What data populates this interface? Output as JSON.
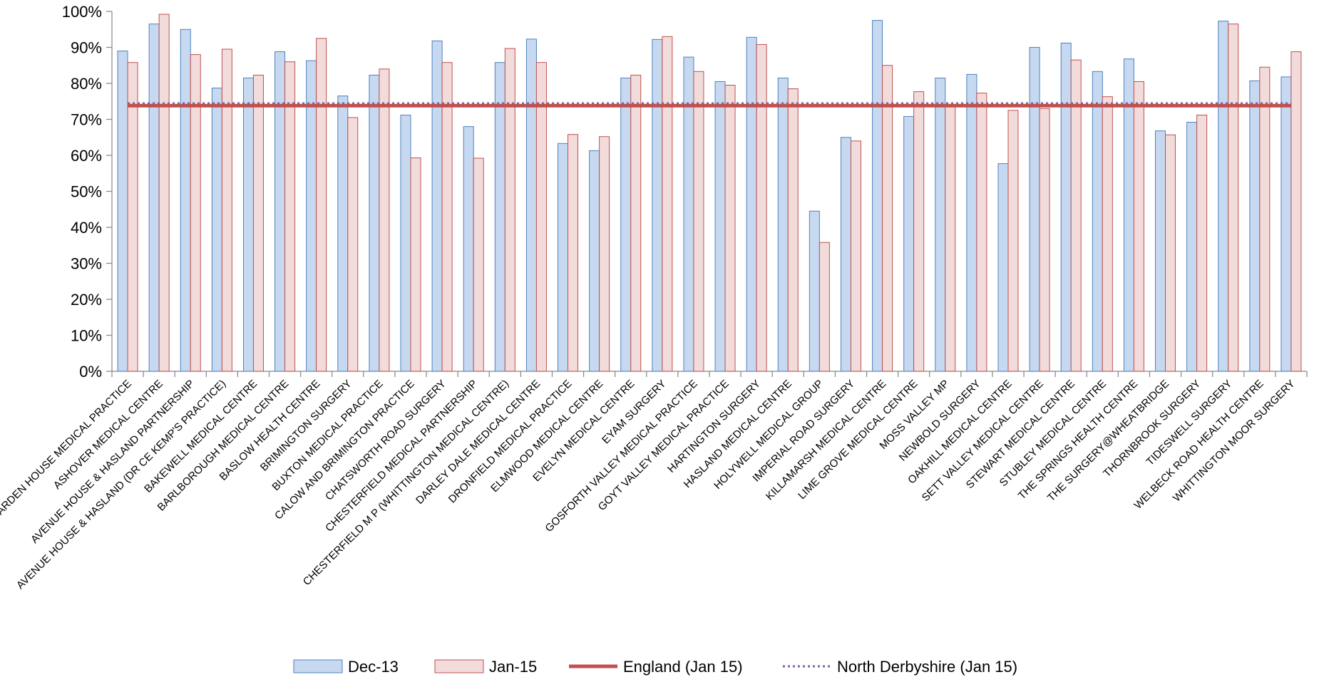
{
  "chart_data": {
    "type": "bar",
    "title": "",
    "xlabel": "",
    "ylabel": "",
    "ylim": [
      0,
      1
    ],
    "y_ticks": [
      "0%",
      "10%",
      "20%",
      "30%",
      "40%",
      "50%",
      "60%",
      "70%",
      "80%",
      "90%",
      "100%"
    ],
    "grid": false,
    "legend_position": "bottom",
    "categories": [
      "ARDEN HOUSE MEDICAL PRACTICE",
      "ASHOVER MEDICAL CENTRE",
      "AVENUE HOUSE & HASLAND PARTNERSHIP",
      "AVENUE HOUSE & HASLAND (DR CE KEMP'S PRACTICE)",
      "BAKEWELL MEDICAL CENTRE",
      "BARLBOROUGH MEDICAL CENTRE",
      "BASLOW HEALTH CENTRE",
      "BRIMINGTON SURGERY",
      "BUXTON MEDICAL PRACTICE",
      "CALOW AND BRIMINGTON PRACTICE",
      "CHATSWORTH ROAD SURGERY",
      "CHESTERFIELD MEDICAL PARTNERSHIP",
      "CHESTERFIELD M P (WHITTINGTON MEDICAL CENTRE)",
      "DARLEY DALE MEDICAL CENTRE",
      "DRONFIELD MEDICAL PRACTICE",
      "ELMWOOD MEDICAL CENTRE",
      "EVELYN MEDICAL CENTRE",
      "EYAM SURGERY",
      "GOSFORTH VALLEY MEDICAL PRACTICE",
      "GOYT VALLEY MEDICAL PRACTICE",
      "HARTINGTON SURGERY",
      "HASLAND MEDICAL CENTRE",
      "HOLYWELL MEDICAL GROUP",
      "IMPERIAL ROAD SURGERY",
      "KILLAMARSH MEDICAL CENTRE",
      "LIME GROVE MEDICAL CENTRE",
      "MOSS VALLEY MP",
      "NEWBOLD SURGERY",
      "OAKHILL MEDICAL CENTRE",
      "SETT VALLEY MEDICAL CENTRE",
      "STEWART MEDICAL CENTRE",
      "STUBLEY MEDICAL CENTRE",
      "THE SPRINGS HEALTH CENTRE",
      "THE SURGERY@WHEATBRIDGE",
      "THORNBROOK SURGERY",
      "TIDESWELL SURGERY",
      "WELBECK ROAD HEALTH CENTRE",
      "WHITTINGTON MOOR SURGERY"
    ],
    "series": [
      {
        "name": "Dec-13",
        "type": "bar",
        "fill": "#c6d9f1",
        "stroke": "#4f81bd",
        "values": [
          0.89,
          0.965,
          0.95,
          0.787,
          0.815,
          0.888,
          0.863,
          0.765,
          0.823,
          0.712,
          0.918,
          0.68,
          0.858,
          0.923,
          0.633,
          0.613,
          0.815,
          0.922,
          0.873,
          0.805,
          0.928,
          0.815,
          0.445,
          0.65,
          0.975,
          0.708,
          0.815,
          0.825,
          0.577,
          0.9,
          0.912,
          0.833,
          0.868,
          0.668,
          0.692,
          0.973,
          0.807,
          0.818
        ]
      },
      {
        "name": "Jan-15",
        "type": "bar",
        "fill": "#f2dcdb",
        "stroke": "#c0504d",
        "values": [
          0.858,
          0.992,
          0.88,
          0.895,
          0.823,
          0.86,
          0.925,
          0.705,
          0.84,
          0.593,
          0.858,
          0.592,
          0.897,
          0.858,
          0.658,
          0.652,
          0.823,
          0.93,
          0.833,
          0.795,
          0.908,
          0.785,
          0.358,
          0.64,
          0.85,
          0.777,
          0.74,
          0.773,
          0.725,
          0.73,
          0.865,
          0.763,
          0.805,
          0.657,
          0.712,
          0.965,
          0.845,
          0.888
        ]
      },
      {
        "name": "England (Jan 15)",
        "type": "line",
        "stroke": "#c0504d",
        "style": "solid",
        "value": 0.738
      },
      {
        "name": "North Derbyshire (Jan 15)",
        "type": "line",
        "stroke": "#8064a2",
        "style": "dotted",
        "value": 0.745
      }
    ]
  }
}
